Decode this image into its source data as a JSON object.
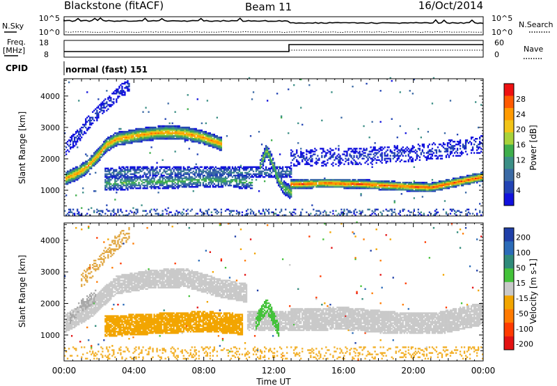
{
  "header": {
    "station": "Blackstone (fitACF)",
    "beam": "Beam 11",
    "date": "16/Oct/2014"
  },
  "noise_panel": {
    "left_label": "N.Sky",
    "right_label": "N.Search",
    "left_ticks": [
      "10^5",
      "10^0"
    ],
    "right_ticks": [
      "10^5",
      "10^0"
    ]
  },
  "freq_panel": {
    "left_label_1": "Freq.",
    "left_label_2": "[MHz]",
    "right_label": "Nave",
    "left_ticks": [
      "18",
      "8"
    ],
    "right_ticks": [
      "60",
      "0"
    ]
  },
  "cpid": {
    "label": "CPID",
    "value": "normal (fast) 151"
  },
  "chart_data": [
    {
      "type": "heatmap",
      "name": "power",
      "ylabel": "Slant Range [km]",
      "yticks": [
        1000,
        2000,
        3000,
        4000
      ],
      "ylim": [
        180,
        4550
      ],
      "xlim": [
        0,
        24
      ],
      "colorbar_label": "Power [dB]",
      "colorbar_ticks": [
        "28",
        "24",
        "20",
        "16",
        "12",
        "8",
        "4"
      ],
      "colorbar_colors": [
        "#ee1111",
        "#ff5a00",
        "#ff9a00",
        "#f2c418",
        "#a8d23a",
        "#3fae4c",
        "#3c8f86",
        "#3b6aa5",
        "#2244b4",
        "#1111dd"
      ],
      "bands": [
        {
          "points": [
            [
              0.1,
              1350
            ],
            [
              0.7,
              1500
            ],
            [
              1.3,
              1700
            ],
            [
              1.9,
              2050
            ],
            [
              2.4,
              2400
            ],
            [
              3.0,
              2600
            ],
            [
              4.0,
              2700
            ],
            [
              5.0,
              2780
            ],
            [
              6.0,
              2820
            ],
            [
              7.0,
              2780
            ],
            [
              8.0,
              2650
            ],
            [
              9.0,
              2450
            ]
          ],
          "width": 220,
          "peak": 24,
          "density": 0.95
        },
        {
          "points": [
            [
              2.3,
              1180
            ],
            [
              4.0,
              1230
            ],
            [
              6.0,
              1250
            ],
            [
              8.0,
              1300
            ],
            [
              9.5,
              1280
            ],
            [
              10.8,
              1230
            ]
          ],
          "width": 230,
          "peak": 15,
          "density": 0.7
        },
        {
          "points": [
            [
              2.3,
              1520
            ],
            [
              4.0,
              1560
            ],
            [
              6.0,
              1560
            ],
            [
              8.0,
              1560
            ],
            [
              10.5,
              1550
            ],
            [
              13.0,
              1540
            ]
          ],
          "width": 170,
          "peak": 11,
          "density": 0.6
        },
        {
          "points": [
            [
              11.2,
              1700
            ],
            [
              11.6,
              2250
            ],
            [
              11.9,
              1900
            ],
            [
              12.2,
              1400
            ],
            [
              12.6,
              1050
            ],
            [
              13.0,
              900
            ]
          ],
          "width": 220,
          "peak": 17,
          "density": 0.85
        },
        {
          "points": [
            [
              13.0,
              1160
            ],
            [
              15.0,
              1200
            ],
            [
              17.0,
              1170
            ],
            [
              19.0,
              1110
            ],
            [
              21.0,
              1060
            ],
            [
              22.5,
              1230
            ],
            [
              24.0,
              1400
            ]
          ],
          "width": 150,
          "peak": 27,
          "density": 0.97
        },
        {
          "points": [
            [
              0.1,
              2300
            ],
            [
              0.8,
              2700
            ],
            [
              1.5,
              3200
            ],
            [
              2.2,
              3600
            ],
            [
              3.0,
              4000
            ],
            [
              3.8,
              4350
            ]
          ],
          "width": 230,
          "peak": 6,
          "density": 0.5
        },
        {
          "points": [
            [
              13.0,
              2000
            ],
            [
              17.0,
              2050
            ],
            [
              21.0,
              2200
            ],
            [
              24.0,
              2450
            ]
          ],
          "width": 280,
          "peak": 6,
          "density": 0.35
        }
      ],
      "ground_scatter_floor": {
        "from": 150,
        "to": 400,
        "peak": 7,
        "density": 0.45
      }
    },
    {
      "type": "heatmap",
      "name": "velocity",
      "ylabel": "Slant Range [km]",
      "yticks": [
        1000,
        2000,
        3000,
        4000
      ],
      "ylim": [
        180,
        4550
      ],
      "xlim": [
        0,
        24
      ],
      "xticks": [
        "00:00",
        "04:00",
        "08:00",
        "12:00",
        "16:00",
        "20:00",
        "00:00"
      ],
      "xlabel": "Time UT",
      "colorbar_label": "Velocity [m s-1]",
      "colorbar_ticks": [
        "200",
        "100",
        "50",
        "15",
        "-15",
        "-50",
        "-100",
        "-200"
      ],
      "colorbar_colors": [
        "#1f3fa8",
        "#2b6bb8",
        "#2f8a7a",
        "#44c23a",
        "#c9c9c9",
        "#f2a500",
        "#ff7a00",
        "#ff3b00",
        "#e31212"
      ],
      "regions": [
        {
          "points": [
            [
              0.1,
              1350
            ],
            [
              1.5,
              1800
            ],
            [
              3.0,
              2550
            ],
            [
              5.0,
              2750
            ],
            [
              7.0,
              2780
            ],
            [
              9.0,
              2450
            ],
            [
              10.5,
              2300
            ]
          ],
          "width": 300,
          "color": "#c9c9c9",
          "density": 0.9
        },
        {
          "points": [
            [
              13.0,
              1450
            ],
            [
              16.0,
              1500
            ],
            [
              19.0,
              1350
            ],
            [
              21.5,
              1350
            ],
            [
              24.0,
              1650
            ]
          ],
          "width": 360,
          "color": "#c9c9c9",
          "density": 0.9
        },
        {
          "points": [
            [
              10.5,
              1400
            ],
            [
              12.0,
              1400
            ],
            [
              13.0,
              1400
            ]
          ],
          "width": 320,
          "color": "#c9c9c9",
          "density": 0.8
        },
        {
          "points": [
            [
              2.3,
              1250
            ],
            [
              4.0,
              1300
            ],
            [
              6.0,
              1350
            ],
            [
              8.0,
              1400
            ],
            [
              9.5,
              1350
            ],
            [
              10.2,
              1300
            ]
          ],
          "width": 330,
          "color": "#f2a500",
          "density": 0.85
        },
        {
          "points": [
            [
              11.0,
              1400
            ],
            [
              11.6,
              1900
            ],
            [
              12.0,
              1500
            ],
            [
              12.3,
              1100
            ]
          ],
          "width": 240,
          "color": "#44c23a",
          "density": 0.75
        },
        {
          "points": [
            [
              1.0,
              2700
            ],
            [
              2.0,
              3300
            ],
            [
              3.0,
              3900
            ],
            [
              3.8,
              4250
            ]
          ],
          "width": 250,
          "color": "#e0a640",
          "density": 0.35
        },
        {
          "points": [
            [
              0.3,
              1500
            ],
            [
              1.0,
              1900
            ],
            [
              1.8,
              2200
            ]
          ],
          "width": 200,
          "color": "#a8a8a8",
          "density": 0.45
        }
      ],
      "ground_scatter_floor": {
        "from": 200,
        "to": 600,
        "color": "#f2b02a",
        "density": 0.4
      }
    }
  ]
}
